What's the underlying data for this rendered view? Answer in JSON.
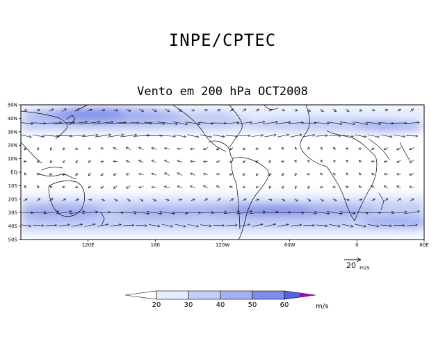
{
  "title": "INPE/CPTEC",
  "subtitle": "Vento em 200 hPa OCT2008",
  "map": {
    "lat_labels": [
      "50N",
      "40N",
      "30N",
      "20N",
      "10N",
      "EQ",
      "10S",
      "20S",
      "30S",
      "40S",
      "50S"
    ],
    "lon_labels": [
      "120E",
      "180",
      "120W",
      "60W",
      "0",
      "60E"
    ],
    "lon_range": [
      60,
      420
    ],
    "lat_range": [
      -50,
      50
    ],
    "vector_scale": {
      "value": "20",
      "units": "m/s"
    }
  },
  "colorbar": {
    "levels": [
      "20",
      "30",
      "40",
      "50",
      "60"
    ],
    "units": "m/s",
    "colors": [
      "#ffffff",
      "#e6ecff",
      "#c3cdf6",
      "#a3b1f0",
      "#7f8dea",
      "#5b5ee2",
      "#a000c8"
    ]
  }
}
